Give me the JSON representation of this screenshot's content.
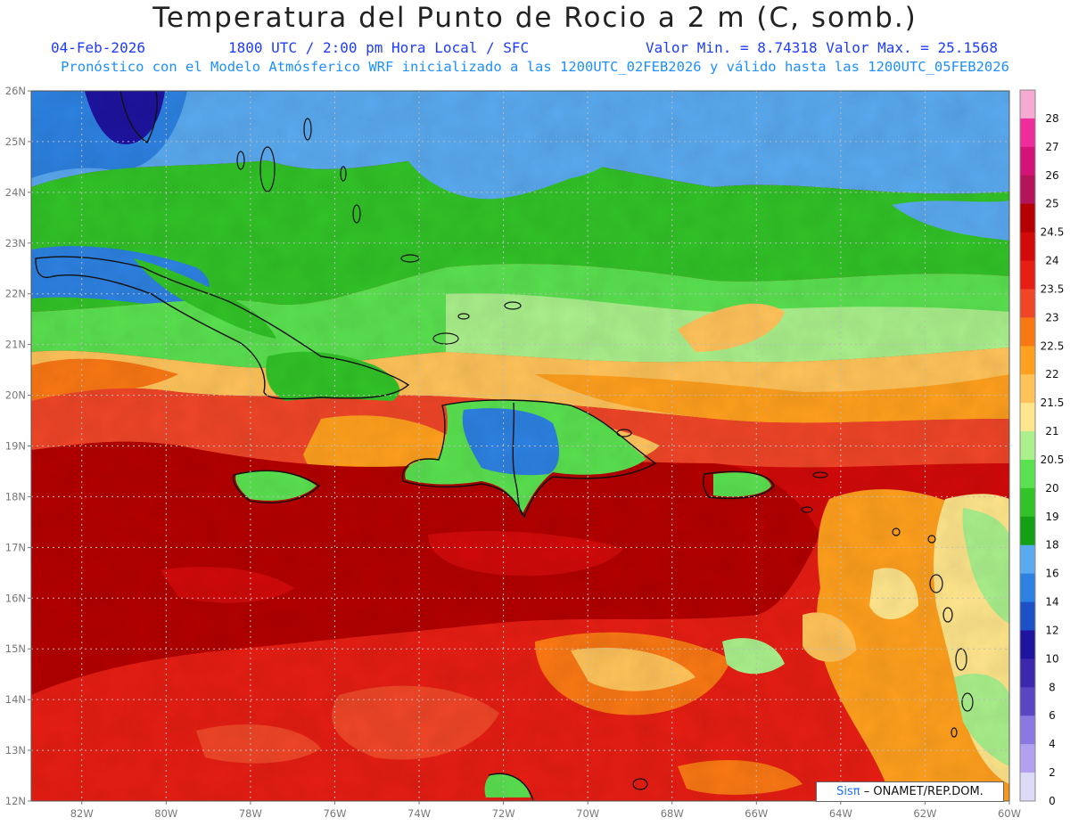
{
  "header": {
    "title": "Temperatura del Punto de Rocio a 2 m (C, somb.)",
    "date": "04-Feb-2026",
    "time": "1800 UTC / 2:00 pm Hora Local / SFC",
    "minmax": "Valor Min. = 8.74318  Valor Max. = 25.1568",
    "description": "Pronóstico con el Modelo Atmósferico WRF inicializado a las 1200UTC_02FEB2026 y válido hasta las  1200UTC_05FEB2026"
  },
  "map": {
    "lat_labels": [
      "26N",
      "25N",
      "24N",
      "23N",
      "22N",
      "21N",
      "20N",
      "19N",
      "18N",
      "17N",
      "16N",
      "15N",
      "14N",
      "13N",
      "12N"
    ],
    "lon_labels": [
      "82W",
      "80W",
      "78W",
      "76W",
      "74W",
      "72W",
      "70W",
      "68W",
      "66W",
      "64W",
      "62W",
      "60W"
    ],
    "lat_range": [
      12,
      26
    ],
    "lon_range": [
      -83.2,
      -60
    ]
  },
  "legend": {
    "levels": [
      {
        "label": "28",
        "color": "#f5aad2"
      },
      {
        "label": "27",
        "color": "#ec2d9a"
      },
      {
        "label": "26",
        "color": "#d21478"
      },
      {
        "label": "25",
        "color": "#b4145a"
      },
      {
        "label": "24.5",
        "color": "#b40000"
      },
      {
        "label": "24",
        "color": "#d20a0a"
      },
      {
        "label": "23.5",
        "color": "#e61e14"
      },
      {
        "label": "23",
        "color": "#f04628"
      },
      {
        "label": "22.5",
        "color": "#fa7814"
      },
      {
        "label": "22",
        "color": "#ffa01e"
      },
      {
        "label": "21.5",
        "color": "#ffc35a"
      },
      {
        "label": "21",
        "color": "#ffe68c"
      },
      {
        "label": "20.5",
        "color": "#aaf08c"
      },
      {
        "label": "20",
        "color": "#5ae150"
      },
      {
        "label": "19",
        "color": "#32c328"
      },
      {
        "label": "18",
        "color": "#14a014"
      },
      {
        "label": "16",
        "color": "#5aaaf0"
      },
      {
        "label": "14",
        "color": "#2d82e1"
      },
      {
        "label": "12",
        "color": "#1e50c8"
      },
      {
        "label": "10",
        "color": "#1e14a0"
      },
      {
        "label": "8",
        "color": "#3c28aa"
      },
      {
        "label": "6",
        "color": "#5a46c3"
      },
      {
        "label": "4",
        "color": "#8c78e1"
      },
      {
        "label": "2",
        "color": "#b4a0f0"
      },
      {
        "label": "0",
        "color": "#dcdcf8"
      }
    ]
  },
  "credit": {
    "sis": "Sisπ",
    "rest": "– ONAMET/REP.DOM."
  }
}
